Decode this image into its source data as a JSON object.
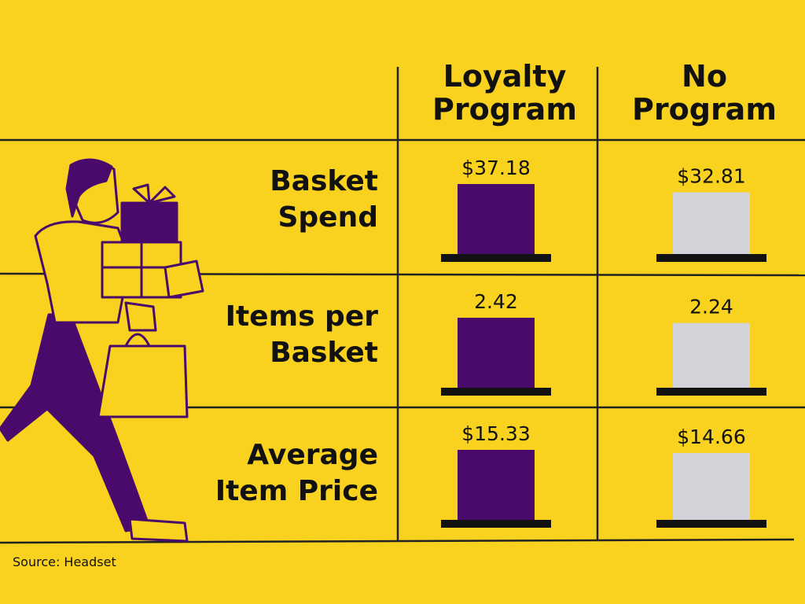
{
  "chart_data": {
    "type": "bar",
    "columns": [
      "Loyalty Program",
      "No Program"
    ],
    "colors": [
      "#4a0a6b",
      "#d3d3da"
    ],
    "rows": [
      {
        "label": "Basket Spend",
        "values": [
          37.18,
          32.81
        ],
        "value_labels": [
          "$37.18",
          "$32.81"
        ]
      },
      {
        "label": "Items per Basket",
        "values": [
          2.42,
          2.24
        ]
      },
      {
        "label": "Average Item Price",
        "values": [
          15.33,
          14.66
        ],
        "value_labels": [
          "$15.33",
          "$14.66"
        ]
      }
    ]
  },
  "source": "Source: Headset"
}
